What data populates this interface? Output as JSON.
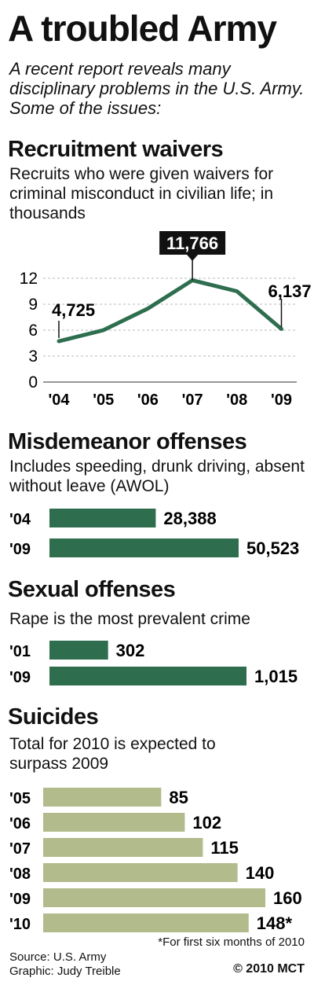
{
  "title": "A troubled Army",
  "intro": "A recent report reveals many disciplinary problems in the U.S. Army. Some of the issues:",
  "sections": {
    "waivers": {
      "heading": "Recruitment waivers",
      "desc": "Recruits who were given waivers for criminal misconduct in civilian life; in thousands"
    },
    "misdemeanor": {
      "heading": "Misdemeanor offenses",
      "desc": "Includes speeding, drunk driving, absent without leave (AWOL)"
    },
    "sexual": {
      "heading": "Sexual offenses",
      "desc": "Rape is the most prevalent crime"
    },
    "suicides": {
      "heading": "Suicides",
      "desc": "Total for 2010 is expected to surpass 2009"
    }
  },
  "footer": {
    "note": "*For first six months of 2010",
    "source": "Source: U.S. Army",
    "graphic": "Graphic: Judy Treible",
    "copyright": "© 2010 MCT"
  },
  "colors": {
    "green": "#2e6e4f",
    "tan": "#b2bb8c",
    "grid": "#b8b8b8"
  },
  "chart_data": [
    {
      "type": "line",
      "x": [
        "'04",
        "'05",
        "'06",
        "'07",
        "'08",
        "'09"
      ],
      "values": [
        4.725,
        6.0,
        8.5,
        11.766,
        10.5,
        6.137
      ],
      "labels": [
        "4,725",
        "",
        "",
        "11,766",
        "",
        "6,137"
      ],
      "yticks": [
        0,
        3,
        6,
        9,
        12
      ],
      "ylim": [
        0,
        12
      ]
    },
    {
      "type": "bar",
      "categories": [
        "'04",
        "'09"
      ],
      "values": [
        28388,
        50523
      ],
      "labels": [
        "28,388",
        "50,523"
      ]
    },
    {
      "type": "bar",
      "categories": [
        "'01",
        "'09"
      ],
      "values": [
        302,
        1015
      ],
      "labels": [
        "302",
        "1,015"
      ]
    },
    {
      "type": "bar",
      "categories": [
        "'05",
        "'06",
        "'07",
        "'08",
        "'09",
        "'10"
      ],
      "values": [
        85,
        102,
        115,
        140,
        160,
        148
      ],
      "labels": [
        "85",
        "102",
        "115",
        "140",
        "160",
        "148*"
      ]
    }
  ]
}
